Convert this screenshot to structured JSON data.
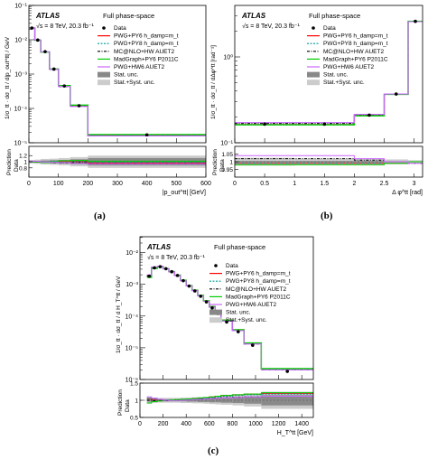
{
  "subfigure_labels": [
    "(a)",
    "(b)",
    "(c)"
  ],
  "common": {
    "atlas": "ATLAS",
    "energy": "√s = 8 TeV, 20.3 fb⁻¹",
    "phase_space": "Full phase-space",
    "ratio_ylabel_top": "Prediction",
    "ratio_ylabel_bottom": "Data",
    "legend": [
      {
        "label": "Data",
        "kind": "marker",
        "color": "#000000"
      },
      {
        "label": "PWG+PY6 h_damp=m_t",
        "kind": "line",
        "color": "#ff0000",
        "dash": ""
      },
      {
        "label": "PWG+PY8 h_damp=m_t",
        "kind": "line",
        "color": "#009999",
        "dash": "2,1.5"
      },
      {
        "label": "MC@NLO+HW AUET2",
        "kind": "line",
        "color": "#000000",
        "dash": "3,1.5,1,1.5"
      },
      {
        "label": "MadGraph+PY6 P2011C",
        "kind": "line",
        "color": "#00cc00",
        "dash": ""
      },
      {
        "label": "PWG+HW6 AUET2",
        "kind": "line",
        "color": "#cc66ff",
        "dash": ""
      },
      {
        "label": "Stat. unc.",
        "kind": "box",
        "color": "#888888"
      },
      {
        "label": "Stat.+Syst. unc.",
        "kind": "box",
        "color": "#cccccc"
      }
    ]
  },
  "chart_data": [
    {
      "type": "line",
      "id": "a",
      "ylabel": "1/σ_tt · dσ_tt / d|p_out^tt| / GeV",
      "xlabel": "|p_out^tt| [GeV]",
      "xlim": [
        0,
        600
      ],
      "ylim_log10": [
        -5,
        -1
      ],
      "xticks": [
        0,
        100,
        200,
        300,
        400,
        500,
        600
      ],
      "yticks_log10": [
        -5,
        -4,
        -3,
        -2,
        -1
      ],
      "ratio_ylim": [
        0.5,
        1.5
      ],
      "ratio_yticks": [
        0.8,
        1,
        1.2
      ],
      "edges": [
        0,
        20,
        40,
        70,
        100,
        140,
        200,
        600
      ],
      "values": [
        0.022,
        0.0098,
        0.0045,
        0.0014,
        0.00045,
        0.00012,
        1.7e-05
      ],
      "ratio_stat": [
        0.03,
        0.03,
        0.04,
        0.05,
        0.06,
        0.08,
        0.12
      ],
      "ratio_syst": [
        0.06,
        0.07,
        0.09,
        0.1,
        0.12,
        0.15,
        0.2
      ],
      "ratios": [
        [
          1.0,
          0.99,
          0.98,
          1.0,
          1.02,
          1.01,
          0.96
        ],
        [
          1.01,
          1.0,
          0.99,
          1.01,
          1.03,
          1.02,
          0.98
        ],
        [
          1.0,
          0.99,
          0.98,
          0.97,
          0.96,
          0.97,
          0.93
        ],
        [
          1.0,
          0.99,
          0.97,
          1.0,
          1.03,
          1.04,
          1.02
        ],
        [
          1.02,
          1.01,
          0.99,
          0.98,
          0.97,
          0.95,
          0.93
        ]
      ]
    },
    {
      "type": "line",
      "id": "b",
      "ylabel": "1/σ_tt · dσ_tt / dΔφ^tt [rad⁻¹]",
      "xlabel": "Δ φ^tt [rad]",
      "xlim": [
        0,
        3.1416
      ],
      "ylim_log10": [
        -1,
        0.6
      ],
      "xticks": [
        0,
        0.5,
        1,
        1.5,
        2,
        2.5,
        3
      ],
      "yticks_log10": [
        -1,
        0
      ],
      "ratio_ylim": [
        0.9,
        1.1
      ],
      "ratio_yticks": [
        0.95,
        1,
        1.05
      ],
      "edges": [
        0,
        1,
        2,
        2.5,
        2.9,
        3.1416
      ],
      "values": [
        0.165,
        0.165,
        0.21,
        0.37,
        2.6
      ],
      "ratio_stat": [
        0.005,
        0.005,
        0.005,
        0.004,
        0.003
      ],
      "ratio_syst": [
        0.025,
        0.02,
        0.02,
        0.015,
        0.01
      ],
      "ratios": [
        [
          0.99,
          0.99,
          0.99,
          0.99,
          1.0
        ],
        [
          0.99,
          0.99,
          0.99,
          0.99,
          1.0
        ],
        [
          1.02,
          1.02,
          1.01,
          1.0,
          0.99
        ],
        [
          0.98,
          0.98,
          0.98,
          0.99,
          1.0
        ],
        [
          1.04,
          1.04,
          1.02,
          1.0,
          0.99
        ]
      ]
    },
    {
      "type": "line",
      "id": "c",
      "ylabel": "1/σ_tt · dσ_tt / d H_T^tt / GeV",
      "xlabel": "H_T^tt [GeV]",
      "xlim": [
        0,
        1500
      ],
      "ylim_log10": [
        -6,
        -1.5
      ],
      "xticks": [
        0,
        200,
        400,
        600,
        800,
        1000,
        1200,
        1400
      ],
      "yticks_log10": [
        -6,
        -5,
        -4,
        -3,
        -2
      ],
      "ratio_ylim": [
        0.5,
        1.5
      ],
      "ratio_yticks": [
        0.5,
        1,
        1.5
      ],
      "edges": [
        60,
        100,
        150,
        200,
        250,
        300,
        350,
        400,
        450,
        500,
        550,
        600,
        650,
        700,
        800,
        900,
        1050,
        1500
      ],
      "values": [
        0.0018,
        0.0033,
        0.0036,
        0.0031,
        0.0025,
        0.0019,
        0.0013,
        0.00088,
        0.00062,
        0.00042,
        0.00028,
        0.00018,
        0.00012,
        6.5e-05,
        3.2e-05,
        1.2e-05,
        1.8e-06
      ],
      "ratio_stat": [
        0.04,
        0.03,
        0.03,
        0.03,
        0.03,
        0.03,
        0.03,
        0.04,
        0.04,
        0.05,
        0.05,
        0.06,
        0.06,
        0.07,
        0.08,
        0.1,
        0.15
      ],
      "ratio_syst": [
        0.1,
        0.08,
        0.07,
        0.07,
        0.07,
        0.07,
        0.08,
        0.08,
        0.09,
        0.09,
        0.1,
        0.11,
        0.12,
        0.13,
        0.15,
        0.18,
        0.25
      ],
      "ratios": [
        [
          1.05,
          1.03,
          1.02,
          1.0,
          1.0,
          1.01,
          1.02,
          1.03,
          1.05,
          1.06,
          1.08,
          1.1,
          1.12,
          1.14,
          1.16,
          1.18,
          1.2
        ],
        [
          1.06,
          1.04,
          1.02,
          1.01,
          1.0,
          1.0,
          1.01,
          1.02,
          1.04,
          1.05,
          1.06,
          1.08,
          1.1,
          1.12,
          1.14,
          1.16,
          1.18
        ],
        [
          1.0,
          0.99,
          0.99,
          0.99,
          1.0,
          1.01,
          1.01,
          1.02,
          1.03,
          1.04,
          1.05,
          1.06,
          1.07,
          1.08,
          1.09,
          1.1,
          1.12
        ],
        [
          0.92,
          0.96,
          0.98,
          1.0,
          1.01,
          1.02,
          1.03,
          1.04,
          1.05,
          1.07,
          1.08,
          1.1,
          1.12,
          1.14,
          1.16,
          1.18,
          1.22
        ],
        [
          1.1,
          1.06,
          1.03,
          1.0,
          0.99,
          0.99,
          1.0,
          1.01,
          1.02,
          1.03,
          1.04,
          1.05,
          1.06,
          1.07,
          1.08,
          1.1,
          1.12
        ]
      ]
    }
  ]
}
